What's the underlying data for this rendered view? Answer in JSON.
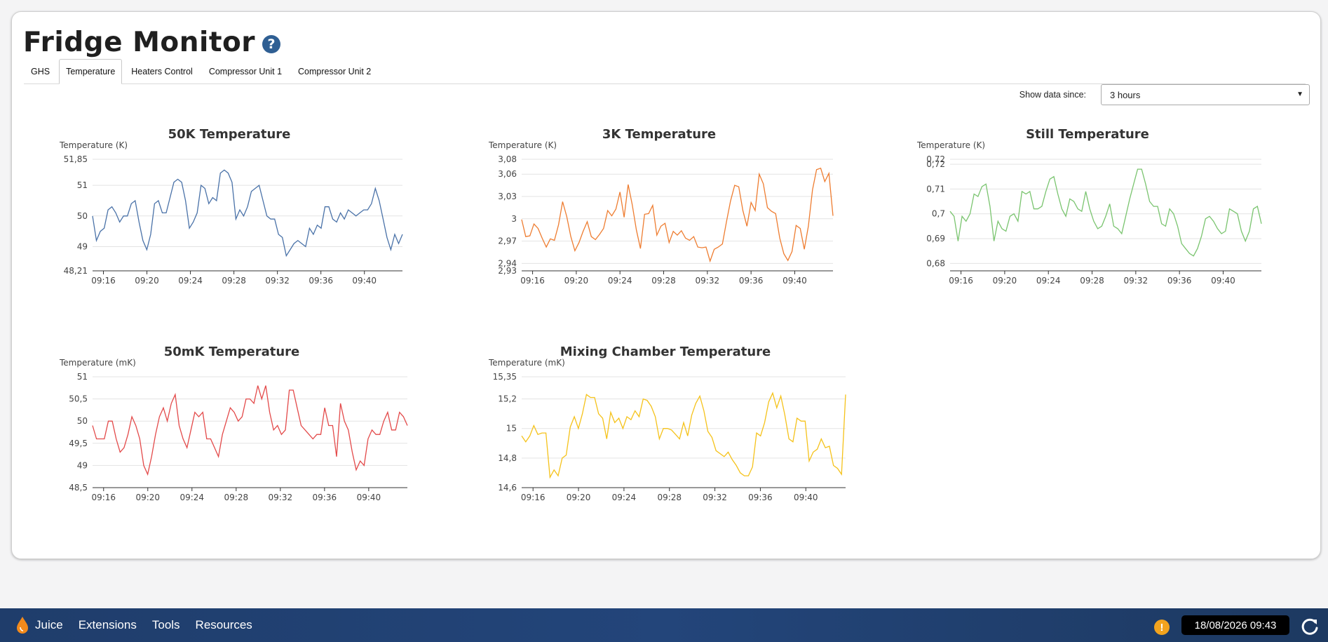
{
  "page": {
    "title": "Fridge Monitor",
    "help_icon": "question-circle-icon"
  },
  "tabs": [
    {
      "label": "GHS",
      "active": false
    },
    {
      "label": "Temperature",
      "active": true
    },
    {
      "label": "Heaters Control",
      "active": false
    },
    {
      "label": "Compressor Unit 1",
      "active": false
    },
    {
      "label": "Compressor Unit 2",
      "active": false
    }
  ],
  "filter": {
    "label": "Show data since:",
    "value": "3 hours"
  },
  "chart_data": [
    {
      "type": "line",
      "title": "50K Temperature",
      "ylabel": "Temperature (K)",
      "xlabel": "",
      "color": "#4a72a8",
      "ylim": [
        48.21,
        51.85
      ],
      "yticks": [
        {
          "v": 48.21,
          "label": "48,21"
        },
        {
          "v": 49,
          "label": "49"
        },
        {
          "v": 50,
          "label": "50"
        },
        {
          "v": 51,
          "label": "51"
        },
        {
          "v": 51.85,
          "label": "51,85"
        }
      ],
      "xticks": [
        "09:16",
        "09:20",
        "09:24",
        "09:28",
        "09:32",
        "09:36",
        "09:40"
      ],
      "x_start_min": 15.0,
      "x_end_min": 43.5,
      "values": [
        50.0,
        49.2,
        49.5,
        49.6,
        50.2,
        50.3,
        50.1,
        49.8,
        50.0,
        50.0,
        50.4,
        50.5,
        49.8,
        49.2,
        48.9,
        49.4,
        50.4,
        50.5,
        50.1,
        50.1,
        50.6,
        51.1,
        51.2,
        51.1,
        50.5,
        49.6,
        49.8,
        50.1,
        51.0,
        50.9,
        50.4,
        50.6,
        50.5,
        51.4,
        51.5,
        51.4,
        51.1,
        49.9,
        50.2,
        50.0,
        50.3,
        50.8,
        50.9,
        51.0,
        50.5,
        50.0,
        49.9,
        49.9,
        49.4,
        49.3,
        48.7,
        48.9,
        49.1,
        49.2,
        49.1,
        49.0,
        49.6,
        49.4,
        49.7,
        49.6,
        50.3,
        50.3,
        49.9,
        49.8,
        50.1,
        49.9,
        50.2,
        50.1,
        50.0,
        50.1,
        50.2,
        50.2,
        50.4,
        50.9,
        50.5,
        49.9,
        49.3,
        48.9,
        49.4,
        49.1,
        49.4
      ]
    },
    {
      "type": "line",
      "title": "3K Temperature",
      "ylabel": "Temperature (K)",
      "xlabel": "",
      "color": "#ee7d31",
      "ylim": [
        2.93,
        3.08
      ],
      "yticks": [
        {
          "v": 2.93,
          "label": "2,93"
        },
        {
          "v": 2.94,
          "label": "2,94"
        },
        {
          "v": 2.97,
          "label": "2,97"
        },
        {
          "v": 3.0,
          "label": "3"
        },
        {
          "v": 3.03,
          "label": "3,03"
        },
        {
          "v": 3.06,
          "label": "3,06"
        },
        {
          "v": 3.08,
          "label": "3,08"
        }
      ],
      "xticks": [
        "09:16",
        "09:20",
        "09:24",
        "09:28",
        "09:32",
        "09:36",
        "09:40"
      ],
      "x_start_min": 15.0,
      "x_end_min": 43.5,
      "values": [
        2.999,
        2.976,
        2.977,
        2.993,
        2.987,
        2.974,
        2.962,
        2.973,
        2.971,
        2.992,
        3.023,
        3.003,
        2.976,
        2.957,
        2.968,
        2.983,
        2.996,
        2.976,
        2.972,
        2.979,
        2.987,
        3.011,
        3.004,
        3.013,
        3.036,
        3.002,
        3.046,
        3.019,
        2.985,
        2.96,
        3.006,
        3.007,
        3.018,
        2.978,
        2.99,
        2.994,
        2.968,
        2.983,
        2.978,
        2.984,
        2.974,
        2.971,
        2.976,
        2.962,
        2.961,
        2.962,
        2.943,
        2.959,
        2.962,
        2.966,
        2.996,
        3.024,
        3.045,
        3.043,
        3.011,
        2.99,
        3.022,
        3.011,
        3.06,
        3.047,
        3.015,
        3.01,
        3.007,
        2.974,
        2.953,
        2.944,
        2.956,
        2.991,
        2.987,
        2.959,
        2.99,
        3.039,
        3.066,
        3.068,
        3.05,
        3.061,
        3.004
      ]
    },
    {
      "type": "line",
      "title": "Still Temperature",
      "ylabel": "Temperature (K)",
      "xlabel": "",
      "color": "#7ac46f",
      "ylim": [
        0.677,
        0.722
      ],
      "yticks": [
        {
          "v": 0.68,
          "label": "0,68"
        },
        {
          "v": 0.69,
          "label": "0,69"
        },
        {
          "v": 0.7,
          "label": "0,7"
        },
        {
          "v": 0.71,
          "label": "0,71"
        },
        {
          "v": 0.72,
          "label": "0,72"
        },
        {
          "v": 0.722,
          "label": "0,72"
        }
      ],
      "xticks": [
        "09:16",
        "09:20",
        "09:24",
        "09:28",
        "09:32",
        "09:36",
        "09:40"
      ],
      "x_start_min": 15.0,
      "x_end_min": 43.5,
      "values": [
        0.701,
        0.699,
        0.689,
        0.699,
        0.697,
        0.7,
        0.708,
        0.707,
        0.711,
        0.712,
        0.703,
        0.689,
        0.697,
        0.694,
        0.693,
        0.699,
        0.7,
        0.697,
        0.709,
        0.708,
        0.709,
        0.702,
        0.702,
        0.703,
        0.709,
        0.714,
        0.715,
        0.708,
        0.702,
        0.699,
        0.706,
        0.705,
        0.702,
        0.701,
        0.709,
        0.702,
        0.697,
        0.694,
        0.695,
        0.699,
        0.704,
        0.695,
        0.694,
        0.692,
        0.699,
        0.706,
        0.712,
        0.718,
        0.718,
        0.712,
        0.705,
        0.703,
        0.703,
        0.696,
        0.695,
        0.702,
        0.7,
        0.695,
        0.688,
        0.686,
        0.684,
        0.683,
        0.686,
        0.691,
        0.698,
        0.699,
        0.697,
        0.694,
        0.692,
        0.693,
        0.702,
        0.701,
        0.7,
        0.693,
        0.689,
        0.693,
        0.702,
        0.703,
        0.696
      ]
    },
    {
      "type": "line",
      "title": "50mK Temperature",
      "ylabel": "Temperature (mK)",
      "xlabel": "",
      "color": "#e34a4a",
      "ylim": [
        48.5,
        51
      ],
      "yticks": [
        {
          "v": 48.5,
          "label": "48,5"
        },
        {
          "v": 49,
          "label": "49"
        },
        {
          "v": 49.5,
          "label": "49,5"
        },
        {
          "v": 50,
          "label": "50"
        },
        {
          "v": 50.5,
          "label": "50,5"
        },
        {
          "v": 51,
          "label": "51"
        }
      ],
      "xticks": [
        "09:16",
        "09:20",
        "09:24",
        "09:28",
        "09:32",
        "09:36",
        "09:40"
      ],
      "x_start_min": 15.0,
      "x_end_min": 43.5,
      "values": [
        49.9,
        49.6,
        49.6,
        49.6,
        50.0,
        50.0,
        49.6,
        49.3,
        49.4,
        49.7,
        50.1,
        49.9,
        49.6,
        49.0,
        48.8,
        49.2,
        49.7,
        50.1,
        50.3,
        50.0,
        50.4,
        50.6,
        49.9,
        49.6,
        49.4,
        49.8,
        50.2,
        50.1,
        50.2,
        49.6,
        49.6,
        49.4,
        49.2,
        49.7,
        50.0,
        50.3,
        50.2,
        50.0,
        50.1,
        50.5,
        50.5,
        50.4,
        50.8,
        50.5,
        50.8,
        50.2,
        49.8,
        49.9,
        49.7,
        49.8,
        50.7,
        50.7,
        50.3,
        49.9,
        49.8,
        49.7,
        49.6,
        49.7,
        49.7,
        50.3,
        49.9,
        49.9,
        49.2,
        50.4,
        50.0,
        49.8,
        49.3,
        48.9,
        49.1,
        49.0,
        49.6,
        49.8,
        49.7,
        49.7,
        50.0,
        50.2,
        49.8,
        49.8,
        50.2,
        50.1,
        49.9
      ]
    },
    {
      "type": "line",
      "title": "Mixing Chamber Temperature",
      "ylabel": "Temperature (mK)",
      "xlabel": "",
      "color": "#f5c21a",
      "ylim": [
        14.6,
        15.35
      ],
      "yticks": [
        {
          "v": 14.6,
          "label": "14,6"
        },
        {
          "v": 14.8,
          "label": "14,8"
        },
        {
          "v": 15,
          "label": "15"
        },
        {
          "v": 15.2,
          "label": "15,2"
        },
        {
          "v": 15.35,
          "label": "15,35"
        }
      ],
      "xticks": [
        "09:16",
        "09:20",
        "09:24",
        "09:28",
        "09:32",
        "09:36",
        "09:40"
      ],
      "x_start_min": 15.0,
      "x_end_min": 43.5,
      "values": [
        14.95,
        14.91,
        14.95,
        15.02,
        14.96,
        14.97,
        14.97,
        14.67,
        14.72,
        14.68,
        14.8,
        14.82,
        15.01,
        15.08,
        15.0,
        15.1,
        15.23,
        15.21,
        15.21,
        15.1,
        15.07,
        14.93,
        15.11,
        15.04,
        15.07,
        15.0,
        15.08,
        15.06,
        15.12,
        15.08,
        15.2,
        15.19,
        15.15,
        15.08,
        14.93,
        15.0,
        15.0,
        14.99,
        14.96,
        14.93,
        15.04,
        14.95,
        15.09,
        15.17,
        15.22,
        15.12,
        14.98,
        14.94,
        14.85,
        14.83,
        14.81,
        14.84,
        14.79,
        14.75,
        14.7,
        14.68,
        14.68,
        14.74,
        14.97,
        14.95,
        15.04,
        15.18,
        15.24,
        15.14,
        15.22,
        15.09,
        14.93,
        14.91,
        15.07,
        15.05,
        15.05,
        14.78,
        14.84,
        14.86,
        14.93,
        14.87,
        14.88,
        14.75,
        14.73,
        14.69,
        15.23
      ]
    }
  ],
  "taskbar": {
    "brand": "Juice",
    "menu": [
      "Extensions",
      "Tools",
      "Resources"
    ],
    "datetime": "18/08/2026 09:43",
    "alert_icon": "exclamation-circle-icon",
    "refresh_icon": "refresh-icon"
  }
}
